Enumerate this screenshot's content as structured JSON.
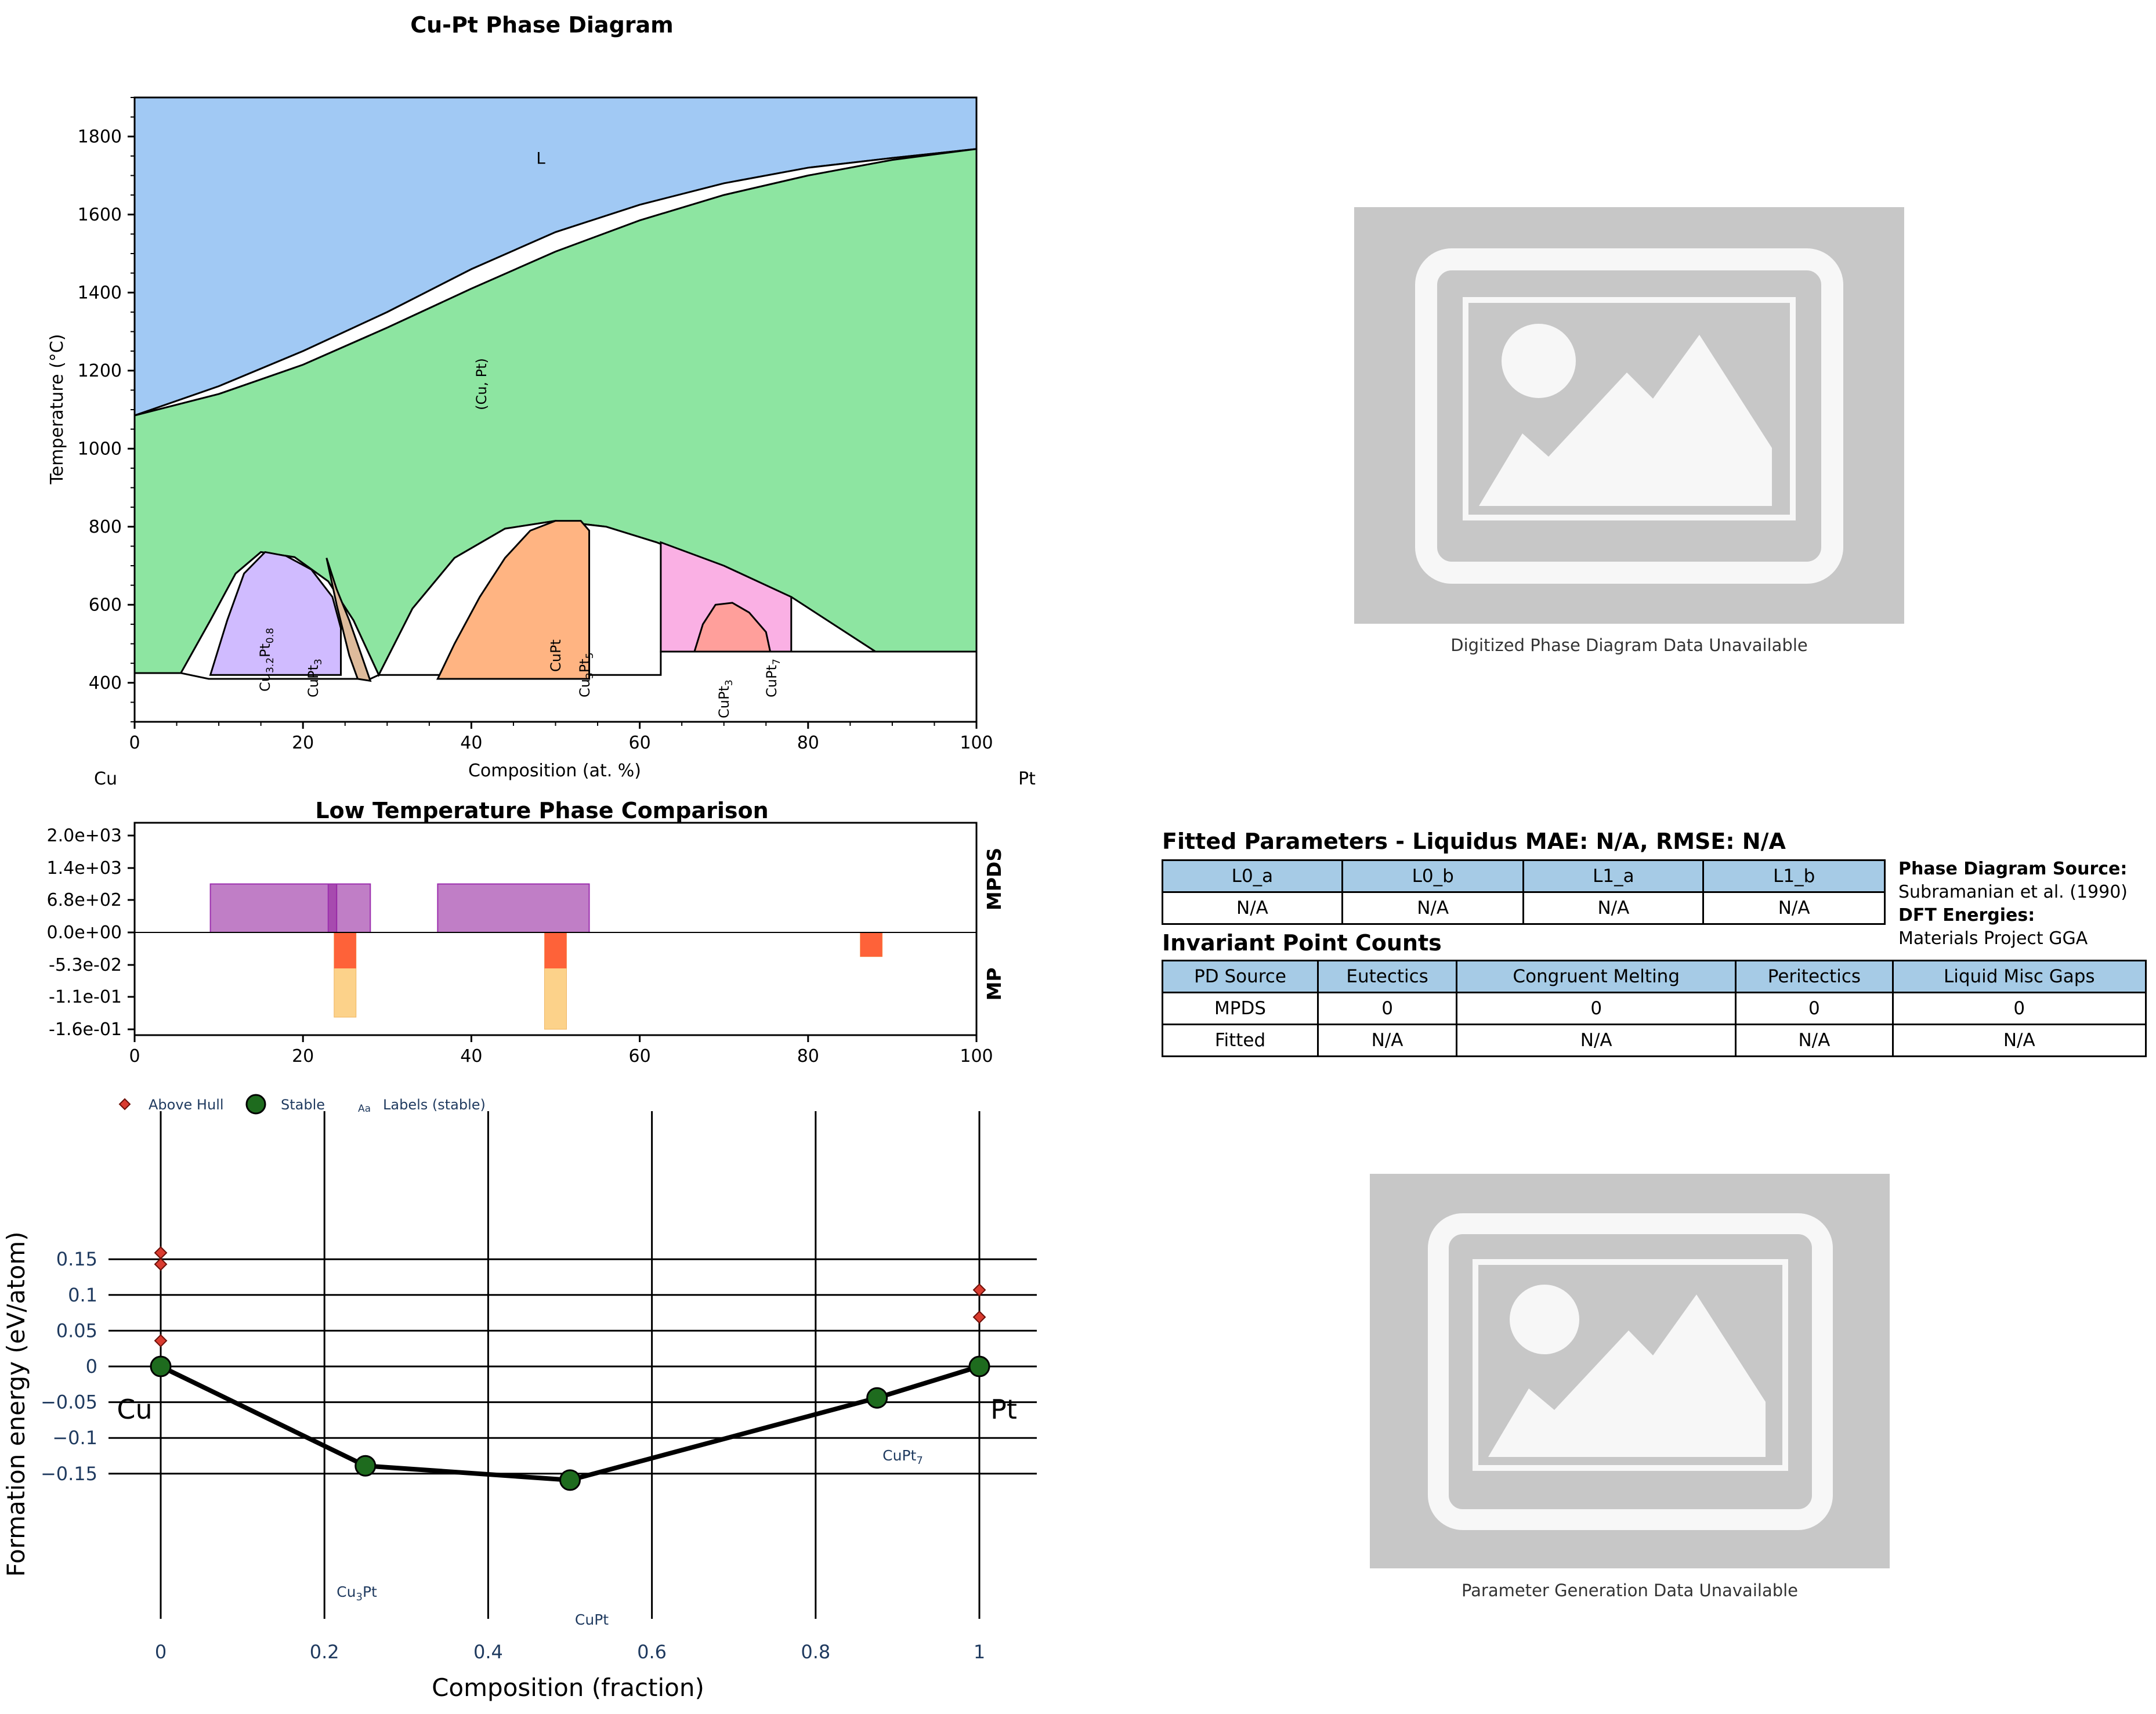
{
  "charts": {
    "phase_diagram": {
      "title": "Cu-Pt Phase Diagram",
      "xlabel": "Composition (at. %)",
      "ylabel": "Temperature (°C)",
      "left_element": "Cu",
      "right_element": "Pt",
      "xticks": [
        "0",
        "20",
        "40",
        "60",
        "80",
        "100"
      ],
      "yticks": [
        "400",
        "600",
        "800",
        "1000",
        "1200",
        "1400",
        "1600",
        "1800"
      ],
      "labels": {
        "liquid": "L",
        "solid_solution": "(Cu, Pt)",
        "cu32pt08_main": "Cu",
        "cu32pt08_sub1": "3.2",
        "cu32pt08_mid": "Pt",
        "cu32pt08_sub2": "0.8",
        "cupt3_a_main": "CuPt",
        "cupt3_a_sub": "3",
        "cupt": "CuPt",
        "cu3pt5_main": "Cu",
        "cu3pt5_sub1": "3",
        "cu3pt5_mid": "Pt",
        "cu3pt5_sub2": "5",
        "cupt3_b_main": "CuPt",
        "cupt3_b_sub": "3",
        "cupt7_main": "CuPt",
        "cupt7_sub": "7"
      }
    },
    "comparison": {
      "title": "Low Temperature Phase Comparison",
      "yticks": [
        "2.0e+03",
        "1.4e+03",
        "6.8e+02",
        "0.0e+00",
        "-5.3e-02",
        "-1.1e-01",
        "-1.6e-01"
      ],
      "xticks": [
        "0",
        "20",
        "40",
        "60",
        "80",
        "100"
      ],
      "label_top": "MPDS",
      "label_bottom": "MP"
    },
    "hull": {
      "xlabel": "Composition (fraction)",
      "ylabel": "Formation energy (eV/atom)",
      "legend_above": "Above Hull",
      "legend_stable": "Stable",
      "legend_labels_icon": "Aa",
      "legend_labels": "Labels (stable)",
      "xticks": [
        "0",
        "0.2",
        "0.4",
        "0.6",
        "0.8",
        "1"
      ],
      "yticks": [
        "0.15",
        "0.1",
        "0.05",
        "0",
        "−0.05",
        "−0.1",
        "−0.15"
      ],
      "end_left": "Cu",
      "end_right": "Pt",
      "point_labels": {
        "cu3pt_main": "Cu",
        "cu3pt_sub": "3",
        "cu3pt_tail": "Pt",
        "cupt": "CuPt",
        "cupt7_main": "CuPt",
        "cupt7_sub": "7"
      }
    }
  },
  "chart_data": [
    {
      "type": "area",
      "title": "Cu-Pt Phase Diagram",
      "xlabel": "Composition (at. %)",
      "ylabel": "Temperature (°C)",
      "xlim": [
        0,
        100
      ],
      "ylim": [
        300,
        1900
      ],
      "phases": [
        "L",
        "(Cu, Pt)",
        "Cu3.2Pt0.8",
        "CuPt3",
        "CuPt",
        "Cu3Pt5",
        "CuPt3",
        "CuPt7"
      ],
      "liquidus": {
        "x": [
          0,
          10,
          20,
          30,
          40,
          50,
          60,
          70,
          80,
          90,
          100
        ],
        "y": [
          1085,
          1160,
          1250,
          1350,
          1460,
          1555,
          1625,
          1680,
          1720,
          1745,
          1768
        ]
      },
      "solidus": {
        "x": [
          0,
          10,
          20,
          30,
          40,
          50,
          60,
          70,
          80,
          90,
          100
        ],
        "y": [
          1085,
          1140,
          1215,
          1310,
          1410,
          1505,
          1585,
          1650,
          1700,
          1740,
          1768
        ]
      }
    },
    {
      "type": "bar",
      "title": "Low Temperature Phase Comparison",
      "series": [
        {
          "name": "MPDS",
          "ranges": [
            [
              9,
              24
            ],
            [
              23,
              28
            ],
            [
              36,
              54
            ]
          ],
          "values": [
            1000,
            1000,
            1000
          ]
        },
        {
          "name": "MP",
          "x": [
            25,
            50,
            87.5
          ],
          "values": [
            -0.14,
            -0.16,
            -0.04
          ]
        }
      ],
      "xlim": [
        0,
        100
      ]
    },
    {
      "type": "scatter",
      "xlabel": "Composition (fraction)",
      "ylabel": "Formation energy (eV/atom)",
      "xlim": [
        -0.07,
        1.07
      ],
      "ylim": [
        -0.17,
        0.18
      ],
      "series": [
        {
          "name": "Stable",
          "x": [
            0,
            0.25,
            0.5,
            0.875,
            1
          ],
          "y": [
            0,
            -0.139,
            -0.159,
            -0.044,
            0
          ]
        },
        {
          "name": "Above Hull",
          "x": [
            0,
            0,
            0,
            0,
            1,
            1
          ],
          "y": [
            0.159,
            0.143,
            0.036,
            0.006,
            0.107,
            0.069
          ]
        }
      ]
    }
  ],
  "placeholders": {
    "top_caption": "Digitized Phase Diagram Data Unavailable",
    "bottom_caption": "Parameter Generation Data Unavailable"
  },
  "fitted_table": {
    "title": "Fitted Parameters - Liquidus MAE: N/A, RMSE: N/A",
    "headers": [
      "L0_a",
      "L0_b",
      "L1_a",
      "L1_b"
    ],
    "values": [
      "N/A",
      "N/A",
      "N/A",
      "N/A"
    ]
  },
  "source_info": {
    "pd_label": "Phase Diagram Source:",
    "pd_value": "Subramanian et al. (1990)",
    "dft_label": "DFT Energies:",
    "dft_value": "Materials Project GGA"
  },
  "invariant_table": {
    "title": "Invariant Point Counts",
    "headers": [
      "PD Source",
      "Eutectics",
      "Congruent Melting",
      "Peritectics",
      "Liquid Misc Gaps"
    ],
    "rows": [
      [
        "MPDS",
        "0",
        "0",
        "0",
        "0"
      ],
      [
        "Fitted",
        "N/A",
        "N/A",
        "N/A",
        "N/A"
      ]
    ]
  }
}
